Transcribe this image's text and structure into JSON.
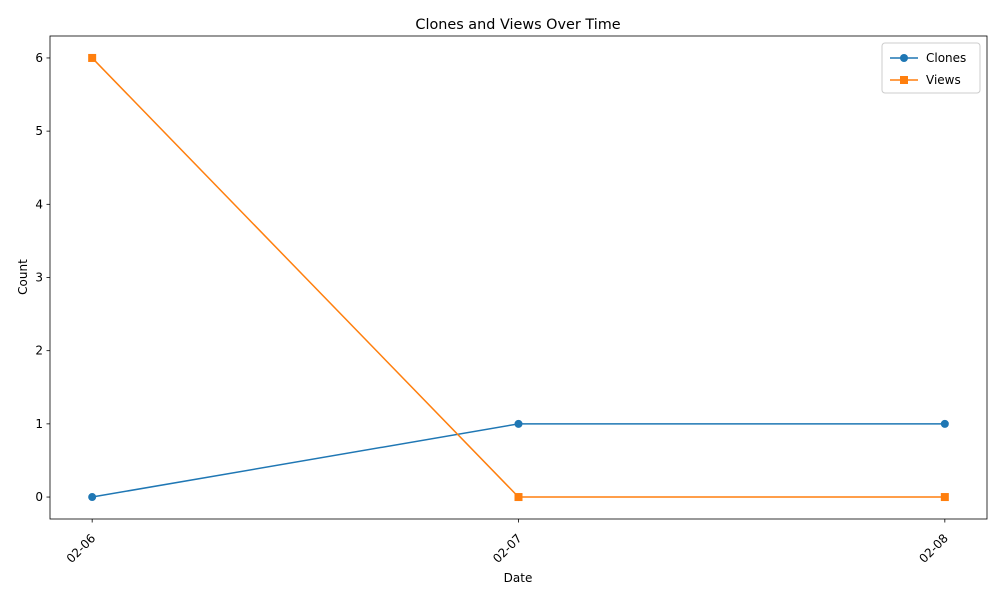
{
  "chart_data": {
    "type": "line",
    "title": "Clones and Views Over Time",
    "xlabel": "Date",
    "ylabel": "Count",
    "categories": [
      "02-06",
      "02-07",
      "02-08"
    ],
    "ylim": [
      -0.3,
      6.3
    ],
    "yticks": [
      0,
      1,
      2,
      3,
      4,
      5,
      6
    ],
    "grid": false,
    "legend_position": "top-right",
    "series": [
      {
        "name": "Clones",
        "values": [
          0,
          1,
          1
        ],
        "color": "#1f77b4",
        "marker": "circle"
      },
      {
        "name": "Views",
        "values": [
          6,
          0,
          0
        ],
        "color": "#ff7f0e",
        "marker": "square"
      }
    ]
  }
}
